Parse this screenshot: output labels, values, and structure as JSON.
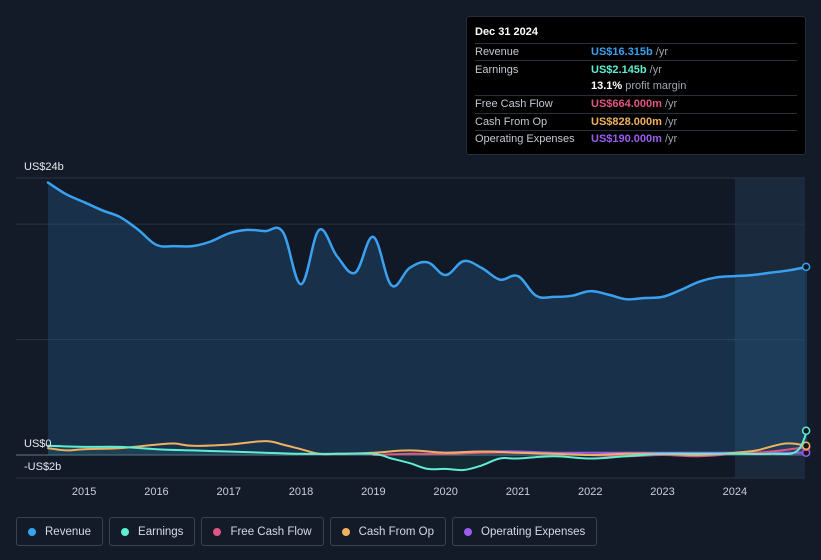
{
  "tooltip": {
    "date": "Dec 31 2024",
    "rows": [
      {
        "label": "Revenue",
        "value": "US$16.315b",
        "unit": "/yr",
        "color": "#3aa1f0"
      },
      {
        "label": "Earnings",
        "value": "US$2.145b",
        "unit": "/yr",
        "color": "#5eeed2"
      },
      {
        "label": "",
        "value": "13.1%",
        "unit": "profit margin",
        "color": "#ffffff"
      },
      {
        "label": "Free Cash Flow",
        "value": "US$664.000m",
        "unit": "/yr",
        "color": "#e05585"
      },
      {
        "label": "Cash From Op",
        "value": "US$828.000m",
        "unit": "/yr",
        "color": "#f0b060"
      },
      {
        "label": "Operating Expenses",
        "value": "US$190.000m",
        "unit": "/yr",
        "color": "#9b5cf0"
      }
    ]
  },
  "chart_data": {
    "type": "line",
    "y_top_label": "US$24b",
    "y_zero_label": "US$0",
    "y_neg_label": "-US$2b",
    "ylim": [
      -2,
      24
    ],
    "xlim": [
      2014.5,
      2025.0
    ],
    "x_ticks": [
      "2015",
      "2016",
      "2017",
      "2018",
      "2019",
      "2020",
      "2021",
      "2022",
      "2023",
      "2024"
    ],
    "highlight_start": 2024.0,
    "series": [
      {
        "name": "Revenue",
        "color": "#3aa1f0",
        "x": [
          2014.5,
          2014.75,
          2015.0,
          2015.25,
          2015.5,
          2015.75,
          2016.0,
          2016.25,
          2016.5,
          2016.75,
          2017.0,
          2017.25,
          2017.5,
          2017.75,
          2018.0,
          2018.25,
          2018.5,
          2018.75,
          2019.0,
          2019.25,
          2019.5,
          2019.75,
          2020.0,
          2020.25,
          2020.5,
          2020.75,
          2021.0,
          2021.25,
          2021.5,
          2021.75,
          2022.0,
          2022.25,
          2022.5,
          2022.75,
          2023.0,
          2023.25,
          2023.5,
          2023.75,
          2024.0,
          2024.25,
          2024.5,
          2024.75,
          2025.0
        ],
        "values": [
          23.6,
          22.6,
          21.9,
          21.2,
          20.6,
          19.5,
          18.2,
          18.1,
          18.1,
          18.5,
          19.2,
          19.5,
          19.4,
          19.3,
          14.8,
          19.5,
          17.2,
          15.8,
          18.9,
          14.7,
          16.2,
          16.7,
          15.6,
          16.8,
          16.2,
          15.2,
          15.5,
          13.8,
          13.7,
          13.8,
          14.2,
          13.9,
          13.5,
          13.6,
          13.7,
          14.3,
          15.0,
          15.4,
          15.5,
          15.6,
          15.8,
          16.0,
          16.3
        ]
      },
      {
        "name": "Earnings",
        "color": "#5eeed2",
        "x": [
          2014.5,
          2015.0,
          2015.5,
          2016.0,
          2016.5,
          2017.0,
          2017.5,
          2018.0,
          2018.5,
          2019.0,
          2019.25,
          2019.5,
          2019.75,
          2020.0,
          2020.25,
          2020.5,
          2020.75,
          2021.0,
          2021.5,
          2022.0,
          2022.5,
          2023.0,
          2023.5,
          2024.0,
          2024.5,
          2024.85,
          2025.0
        ],
        "values": [
          0.8,
          0.7,
          0.7,
          0.5,
          0.4,
          0.3,
          0.2,
          0.1,
          0.1,
          0.1,
          -0.3,
          -0.7,
          -1.2,
          -1.2,
          -1.3,
          -0.9,
          -0.3,
          -0.3,
          -0.1,
          -0.3,
          -0.1,
          0.1,
          0.1,
          0.1,
          0.1,
          0.3,
          2.1
        ]
      },
      {
        "name": "Free Cash Flow",
        "color": "#e05585",
        "x": [
          2019.0,
          2019.5,
          2020.0,
          2020.5,
          2021.0,
          2021.5,
          2022.0,
          2022.5,
          2023.0,
          2023.5,
          2024.0,
          2024.5,
          2025.0
        ],
        "values": [
          0.0,
          0.1,
          0.1,
          0.2,
          0.2,
          0.1,
          0.0,
          -0.1,
          0.0,
          -0.1,
          0.1,
          0.3,
          0.7
        ]
      },
      {
        "name": "Cash From Op",
        "color": "#f0b060",
        "x": [
          2014.5,
          2014.75,
          2015.0,
          2015.5,
          2016.0,
          2016.25,
          2016.5,
          2017.0,
          2017.5,
          2017.75,
          2018.0,
          2018.25,
          2018.5,
          2019.0,
          2019.5,
          2020.0,
          2020.5,
          2021.0,
          2021.5,
          2022.0,
          2022.5,
          2023.0,
          2023.5,
          2024.0,
          2024.3,
          2024.7,
          2025.0
        ],
        "values": [
          0.6,
          0.4,
          0.5,
          0.6,
          0.9,
          1.0,
          0.8,
          0.9,
          1.2,
          0.9,
          0.5,
          0.1,
          0.1,
          0.2,
          0.4,
          0.2,
          0.3,
          0.2,
          0.1,
          0.0,
          0.1,
          0.1,
          0.0,
          0.2,
          0.4,
          1.0,
          0.8
        ]
      },
      {
        "name": "Operating Expenses",
        "color": "#9b5cf0",
        "x": [
          2020.0,
          2020.5,
          2021.0,
          2021.5,
          2022.0,
          2022.5,
          2023.0,
          2023.5,
          2024.0,
          2024.5,
          2025.0
        ],
        "values": [
          0.2,
          0.3,
          0.3,
          0.2,
          0.2,
          0.2,
          0.2,
          0.2,
          0.2,
          0.2,
          0.2
        ]
      }
    ]
  },
  "legend": [
    {
      "label": "Revenue",
      "color": "#3aa1f0"
    },
    {
      "label": "Earnings",
      "color": "#5eeed2"
    },
    {
      "label": "Free Cash Flow",
      "color": "#e05585"
    },
    {
      "label": "Cash From Op",
      "color": "#f0b060"
    },
    {
      "label": "Operating Expenses",
      "color": "#9b5cf0"
    }
  ]
}
